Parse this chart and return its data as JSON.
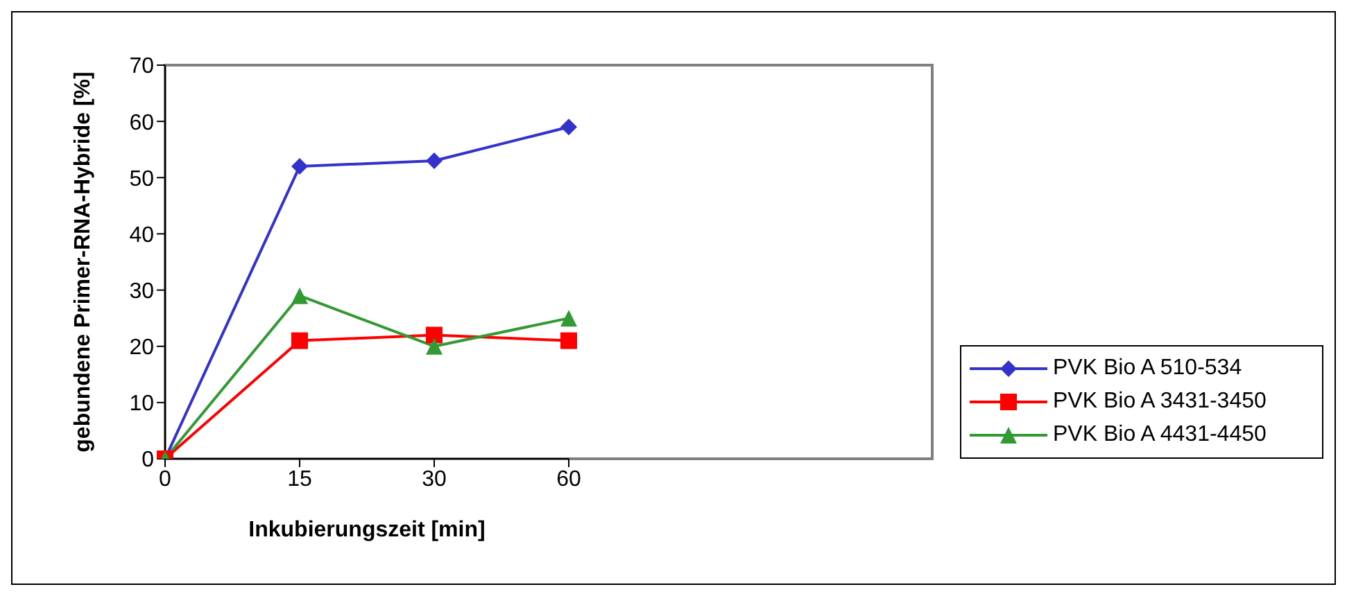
{
  "chart_data": {
    "type": "line",
    "xlabel": "Inkubierungszeit [min]",
    "ylabel": "gebundene Primer-RNA-Hybride [%]",
    "categories": [
      "0",
      "15",
      "30",
      "60"
    ],
    "ylim": [
      0,
      70
    ],
    "yticks": [
      0,
      10,
      20,
      30,
      40,
      50,
      60,
      70
    ],
    "grid": false,
    "legend": "right",
    "series": [
      {
        "name": "PVK Bio A 510-534",
        "color": "#3333cc",
        "marker": "diamond",
        "values": [
          0,
          52,
          53,
          59
        ]
      },
      {
        "name": "PVK Bio A 3431-3450",
        "color": "#ff0000",
        "marker": "square",
        "values": [
          0,
          21,
          22,
          21
        ]
      },
      {
        "name": "PVK Bio A 4431-4450",
        "color": "#339933",
        "marker": "triangle",
        "values": [
          0,
          29,
          20,
          25
        ]
      }
    ]
  }
}
